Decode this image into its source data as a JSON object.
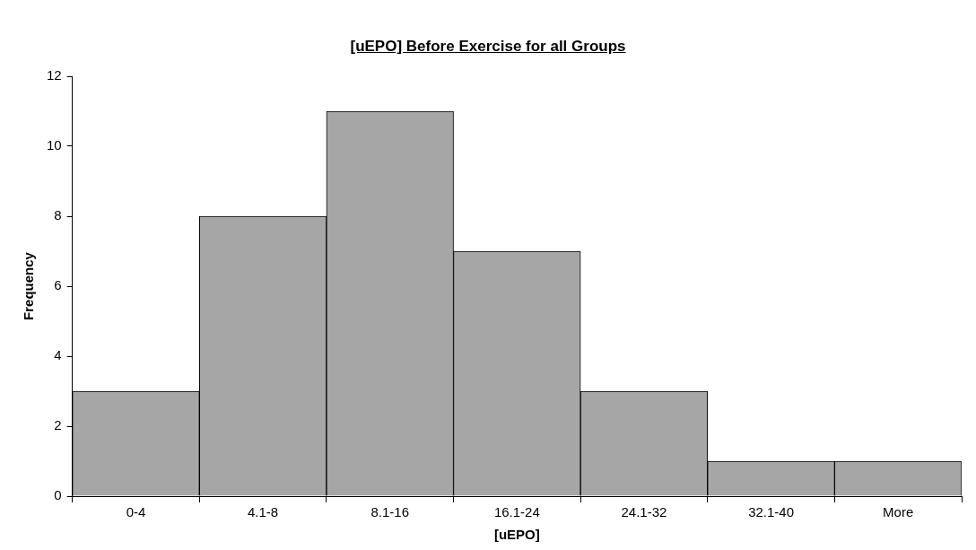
{
  "chart_data": {
    "type": "bar",
    "title": "[uEPO] Before Exercise for all Groups",
    "xlabel": "[uEPO]",
    "ylabel": "Frequency",
    "categories": [
      "0-4",
      "4.1-8",
      "8.1-16",
      "16.1-24",
      "24.1-32",
      "32.1-40",
      "More"
    ],
    "values": [
      3,
      8,
      11,
      7,
      3,
      1,
      1
    ],
    "color": "#a6a6a6",
    "ylim": [
      0,
      12
    ],
    "yticks": [
      0,
      2,
      4,
      6,
      8,
      10,
      12
    ]
  }
}
